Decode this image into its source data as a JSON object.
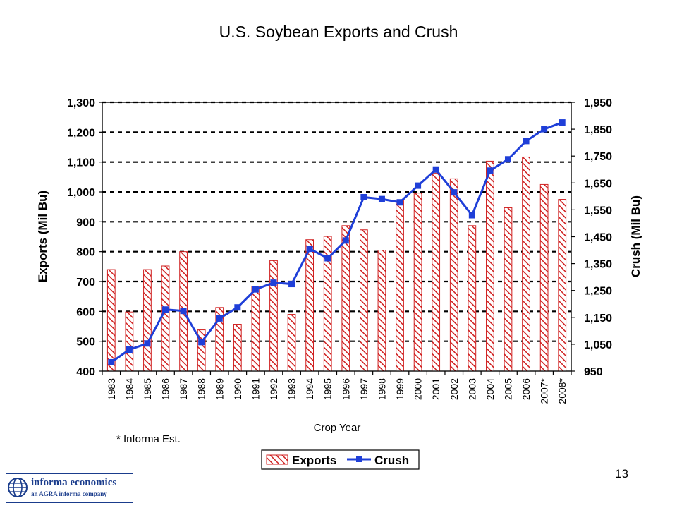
{
  "chart_data": {
    "type": "bar+line",
    "title": "U.S. Soybean Exports and Crush",
    "xlabel": "Crop Year",
    "ylabel_left": "Exports (Mil Bu)",
    "ylabel_right": "Crush (Mil Bu)",
    "ylim_left": [
      400,
      1300
    ],
    "ylim_right": [
      950,
      1950
    ],
    "yticks_left": [
      "400",
      "500",
      "600",
      "700",
      "800",
      "900",
      "1,000",
      "1,100",
      "1,200",
      "1,300"
    ],
    "yticks_right": [
      "950",
      "1,050",
      "1,150",
      "1,250",
      "1,350",
      "1,450",
      "1,550",
      "1,650",
      "1,750",
      "1,850",
      "1,950"
    ],
    "gridlines": "horizontal dashed",
    "legend_position": "bottom",
    "categories": [
      "1983",
      "1984",
      "1985",
      "1986",
      "1987",
      "1988",
      "1989",
      "1990",
      "1991",
      "1992",
      "1993",
      "1994",
      "1995",
      "1996",
      "1997",
      "1998",
      "1999",
      "2000",
      "2001",
      "2002",
      "2003",
      "2004",
      "2005",
      "2006",
      "2007*",
      "2008*"
    ],
    "series": [
      {
        "name": "Exports",
        "kind": "bar",
        "axis": "left",
        "values": [
          740,
          598,
          740,
          752,
          800,
          538,
          613,
          557,
          684,
          770,
          590,
          840,
          851,
          887,
          873,
          805,
          973,
          996,
          1063,
          1044,
          887,
          1103,
          947,
          1117,
          1025,
          975
        ]
      },
      {
        "name": "Crush",
        "kind": "line",
        "axis": "right",
        "values": [
          983,
          1030,
          1053,
          1179,
          1174,
          1058,
          1146,
          1187,
          1254,
          1279,
          1274,
          1405,
          1370,
          1436,
          1597,
          1590,
          1578,
          1640,
          1700,
          1615,
          1530,
          1696,
          1738,
          1806,
          1850,
          1875
        ]
      }
    ],
    "annotation": "* Informa Est."
  },
  "footer": {
    "page_number": "13",
    "logo_name": "informa economics",
    "logo_tagline": "an AGRA informa company"
  },
  "colors": {
    "bar_hatch": "#d02020",
    "line": "#1f3fd8",
    "grid": "#000000",
    "logo": "#1a3c8c"
  }
}
